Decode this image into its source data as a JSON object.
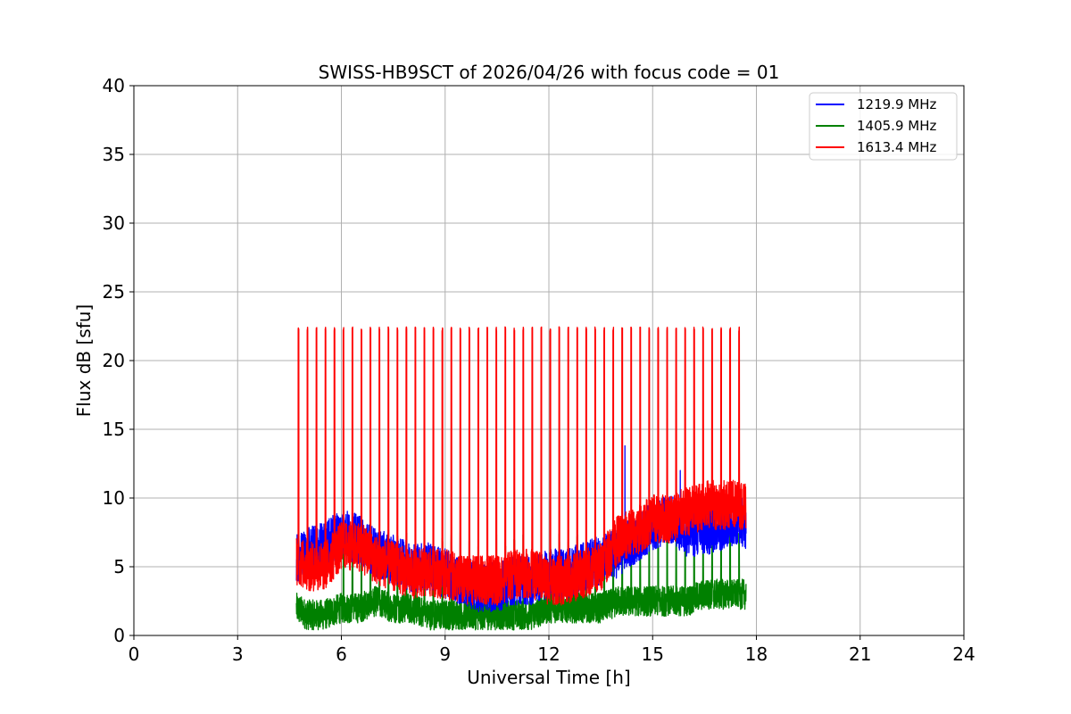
{
  "chart_data": {
    "type": "line",
    "title": "SWISS-HB9SCT of 2026/04/26 with focus code = 01",
    "xlabel": "Universal Time [h]",
    "ylabel": "Flux dB [sfu]",
    "xlim": [
      0,
      24
    ],
    "ylim": [
      0,
      40
    ],
    "xticks": [
      0,
      3,
      6,
      9,
      12,
      15,
      18,
      21,
      24
    ],
    "yticks": [
      0,
      5,
      10,
      15,
      20,
      25,
      30,
      35,
      40
    ],
    "grid": true,
    "legend_position": "top-right",
    "series": [
      {
        "name": "1219.9 MHz",
        "color": "#0000ff",
        "x": [
          4.7,
          5.0,
          5.5,
          6.0,
          6.5,
          7.0,
          7.5,
          8.0,
          8.5,
          9.0,
          9.5,
          10.0,
          10.5,
          11.0,
          11.5,
          12.0,
          12.5,
          13.0,
          13.5,
          14.0,
          14.5,
          15.0,
          15.5,
          16.0,
          16.5,
          17.0,
          17.5,
          17.7
        ],
        "y": [
          5.5,
          6.0,
          6.5,
          7.5,
          7.0,
          6.0,
          5.5,
          5.0,
          5.0,
          4.5,
          4.0,
          3.5,
          3.5,
          4.0,
          4.0,
          4.5,
          4.5,
          5.0,
          5.5,
          6.0,
          7.0,
          8.0,
          8.5,
          7.5,
          7.5,
          8.0,
          8.5,
          8.0
        ],
        "spikes": [
          {
            "x": 14.2,
            "y": 13.8
          },
          {
            "x": 15.8,
            "y": 12.0
          }
        ]
      },
      {
        "name": "1405.9 MHz",
        "color": "#008000",
        "x": [
          4.7,
          5.0,
          5.5,
          6.0,
          6.5,
          7.0,
          7.5,
          8.0,
          8.5,
          9.0,
          9.5,
          10.0,
          10.5,
          11.0,
          11.5,
          12.0,
          12.5,
          13.0,
          13.5,
          14.0,
          14.5,
          15.0,
          15.5,
          16.0,
          16.5,
          17.0,
          17.5,
          17.7
        ],
        "y": [
          2.0,
          1.5,
          1.5,
          2.0,
          2.0,
          2.5,
          2.0,
          2.0,
          1.5,
          1.5,
          1.5,
          1.5,
          1.5,
          1.5,
          1.5,
          2.0,
          2.0,
          2.0,
          2.0,
          2.5,
          2.5,
          2.5,
          2.5,
          2.5,
          3.0,
          3.0,
          3.0,
          3.0
        ],
        "pulse_peak": 7.5
      },
      {
        "name": "1613.4 MHz",
        "color": "#ff0000",
        "x": [
          4.7,
          5.0,
          5.5,
          6.0,
          6.5,
          7.0,
          7.5,
          8.0,
          8.5,
          9.0,
          9.5,
          10.0,
          10.5,
          11.0,
          11.5,
          12.0,
          12.5,
          13.0,
          13.5,
          14.0,
          14.5,
          15.0,
          15.5,
          16.0,
          16.5,
          17.0,
          17.5,
          17.7
        ],
        "y": [
          5.5,
          5.0,
          5.0,
          6.5,
          6.5,
          5.5,
          5.0,
          4.5,
          4.5,
          4.5,
          4.0,
          4.0,
          4.0,
          4.5,
          4.5,
          4.0,
          4.0,
          4.5,
          5.0,
          7.0,
          7.5,
          8.5,
          8.5,
          9.0,
          9.5,
          9.5,
          9.5,
          9.5
        ],
        "pulses": {
          "start": 4.75,
          "period": 0.26,
          "end": 17.6,
          "peak": 22.3
        }
      }
    ]
  }
}
